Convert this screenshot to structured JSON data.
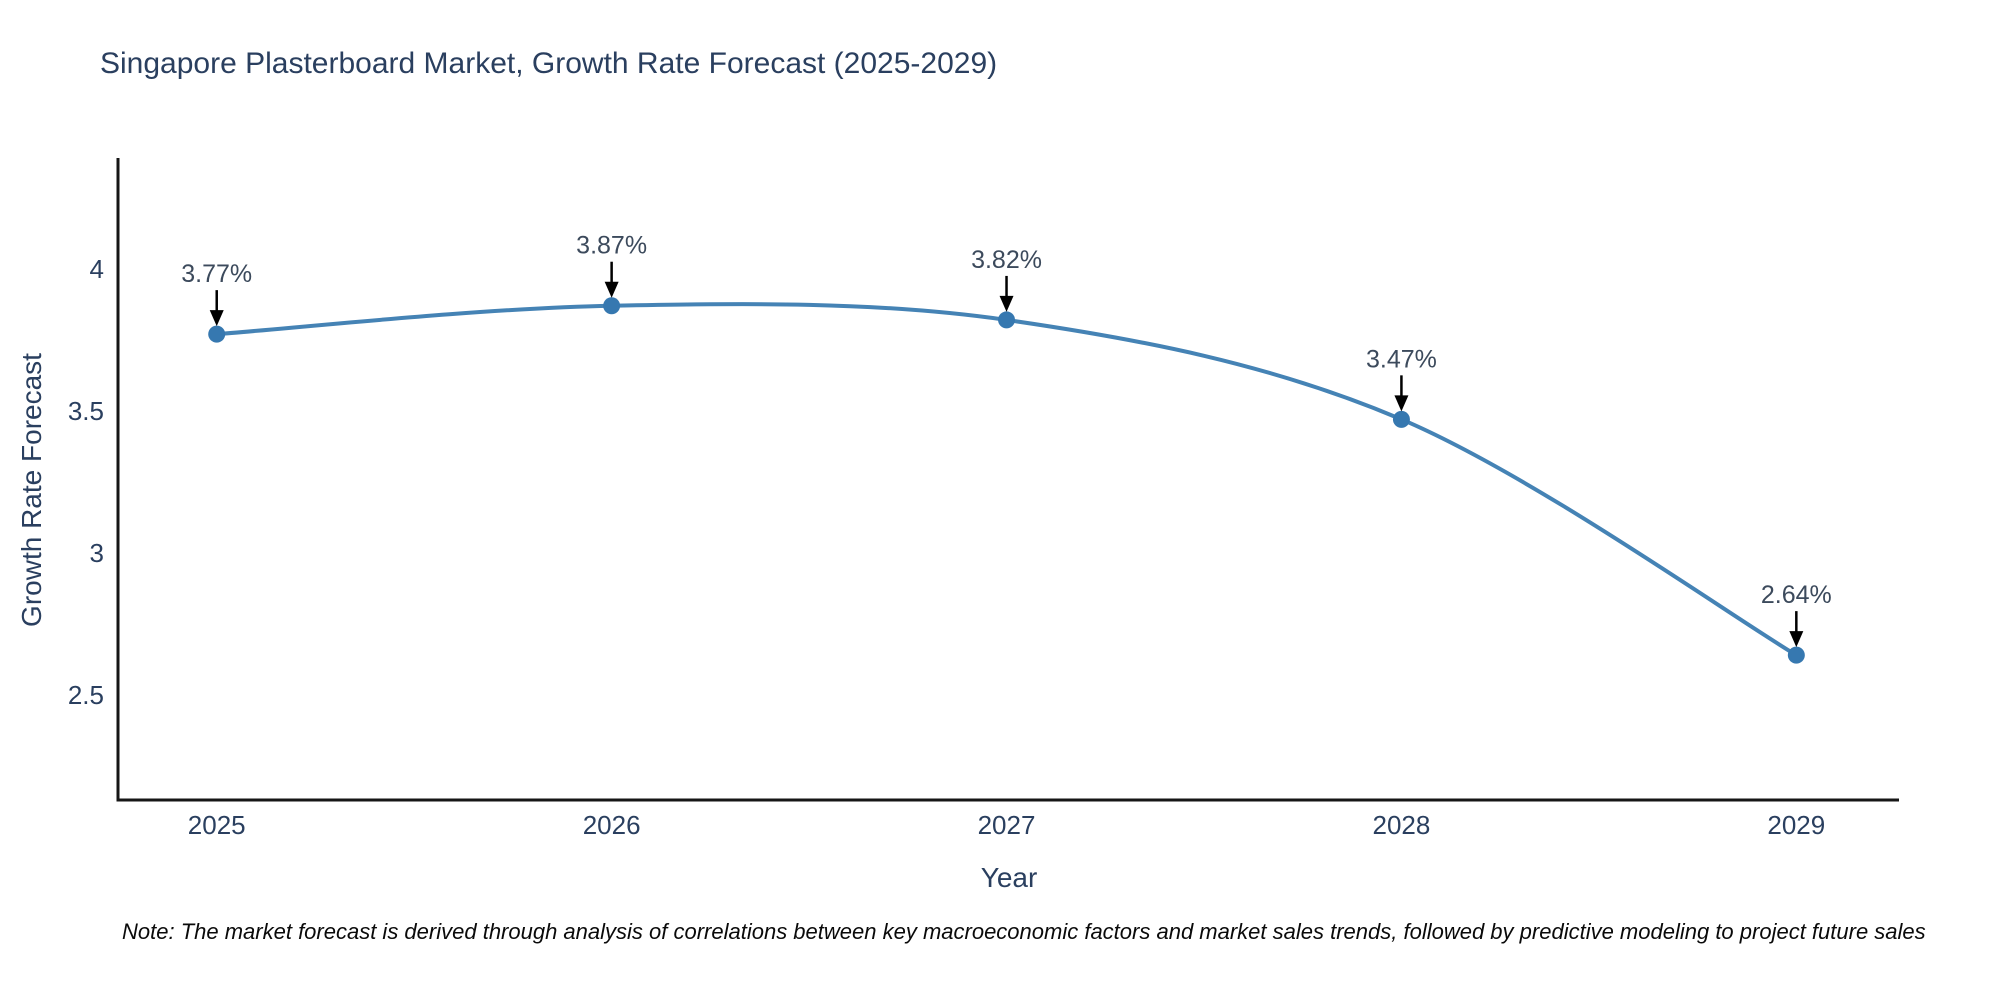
{
  "chart_data": {
    "type": "line",
    "line_shape": "spline",
    "title": "Singapore Plasterboard Market, Growth Rate Forecast (2025-2029)",
    "xlabel": "Year",
    "ylabel": "Growth Rate Forecast",
    "x": [
      2025,
      2026,
      2027,
      2028,
      2029
    ],
    "xtick_labels": [
      "2025",
      "2026",
      "2027",
      "2028",
      "2029"
    ],
    "series": [
      {
        "name": "Growth Rate Forecast",
        "values": [
          3.77,
          3.87,
          3.82,
          3.47,
          2.64
        ]
      }
    ],
    "point_labels": [
      "3.77%",
      "3.87%",
      "3.82%",
      "3.47%",
      "2.64%"
    ],
    "yticks": [
      2.5,
      3,
      3.5,
      4
    ],
    "ytick_labels": [
      "2.5",
      "3",
      "3.5",
      "4"
    ],
    "xlim": [
      2024.75,
      2029.26
    ],
    "ylim": [
      2.13,
      4.39
    ],
    "grid": false,
    "legend": "none",
    "colors": {
      "line": "#4583b5",
      "marker": "#3678b0",
      "axis": "#161616",
      "text": "#2a3f5f",
      "annotation_text": "#3c4a5c",
      "arrow": "#000000"
    }
  },
  "note": {
    "text": "Note: The market forecast is derived through analysis of correlations between key macroeconomic factors and market sales trends, followed by predictive modeling to project future sales"
  }
}
